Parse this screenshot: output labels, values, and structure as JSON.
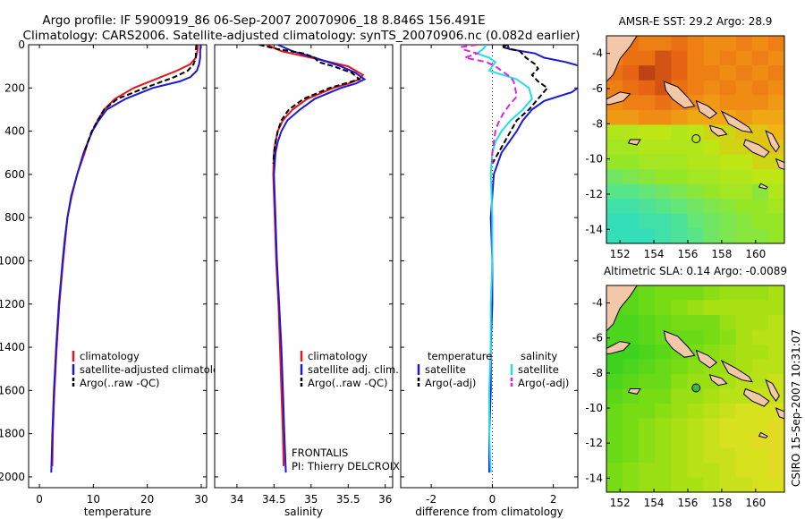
{
  "header": {
    "line1": "Argo profile: IF 5900919_86 06-Sep-2007 20070906_18 8.846S 156.491E",
    "line2": "Climatology: CARS2006. Satellite-adjusted climatology: synTS_20070906.nc (0.082d earlier)"
  },
  "side_label": "CSIRO 15-Sep-2007 10:31:07",
  "colors": {
    "climatology": "#e8141a",
    "satellite": "#1a1ad6",
    "argo": "#000000",
    "sat_salinity": "#22dde8",
    "argo_salinity": "#e020e0"
  },
  "chart_data": [
    {
      "id": "temperature",
      "type": "line",
      "xlabel": "temperature",
      "xlim": [
        -2,
        31
      ],
      "ylim": [
        0,
        2050
      ],
      "xticks": [
        0,
        10,
        20,
        30
      ],
      "yticks": [
        0,
        200,
        400,
        600,
        800,
        1000,
        1200,
        1400,
        1600,
        1800,
        2000
      ],
      "legend": [
        "climatology",
        "satellite-adjusted climatology",
        "Argo(..raw -QC)"
      ],
      "series": [
        {
          "name": "climatology",
          "color": "#e8141a",
          "dash": "",
          "depth": [
            0,
            30,
            60,
            90,
            120,
            150,
            200,
            250,
            300,
            350,
            400,
            450,
            500,
            600,
            700,
            800,
            900,
            1000,
            1200,
            1400,
            1600,
            1800,
            1950
          ],
          "values": [
            29.4,
            29.3,
            29.0,
            28.0,
            25.5,
            22.5,
            17.5,
            14.0,
            12.0,
            10.8,
            9.8,
            9.0,
            8.4,
            7.0,
            6.0,
            5.2,
            4.8,
            4.4,
            3.7,
            3.2,
            2.8,
            2.5,
            2.4
          ]
        },
        {
          "name": "satellite-adjusted climatology",
          "color": "#1a1ad6",
          "dash": "",
          "depth": [
            0,
            30,
            60,
            90,
            120,
            150,
            170,
            200,
            250,
            300,
            350,
            400,
            450,
            500,
            600,
            700,
            800,
            900,
            1000,
            1200,
            1400,
            1600,
            1800,
            1980
          ],
          "values": [
            29.9,
            29.8,
            29.8,
            29.6,
            29.2,
            28.0,
            26.0,
            21.0,
            16.0,
            12.5,
            11.0,
            9.8,
            9.0,
            8.2,
            7.0,
            5.9,
            5.2,
            4.7,
            4.3,
            3.6,
            3.1,
            2.7,
            2.4,
            2.2
          ]
        },
        {
          "name": "Argo(..raw -QC)",
          "color": "#000000",
          "dash": "6,3",
          "depth": [
            0,
            30,
            60,
            90,
            120,
            150,
            200,
            250,
            300,
            350,
            400,
            450,
            500
          ],
          "values": [
            29.1,
            29.0,
            29.0,
            28.6,
            27.5,
            25.0,
            19.5,
            14.5,
            12.0,
            10.8,
            9.7,
            9.0,
            8.3
          ]
        }
      ]
    },
    {
      "id": "salinity",
      "type": "line",
      "xlabel": "salinity",
      "xlim": [
        33.7,
        36.1
      ],
      "ylim": [
        0,
        2050
      ],
      "xticks": [
        34,
        34.5,
        35,
        35.5,
        36
      ],
      "yticks": [
        0,
        200,
        400,
        600,
        800,
        1000,
        1200,
        1400,
        1600,
        1800,
        2000
      ],
      "legend": [
        "climatology",
        "satellite adj. clim.",
        "Argo(..raw -QC)"
      ],
      "annotation": [
        "FRONTALIS",
        "PI: Thierry DELCROIX"
      ],
      "series": [
        {
          "name": "climatology",
          "color": "#e8141a",
          "dash": "",
          "depth": [
            0,
            30,
            60,
            100,
            140,
            160,
            180,
            200,
            250,
            300,
            350,
            400,
            450,
            500,
            600,
            800,
            1000,
            1200,
            1400,
            1600,
            1800,
            1950
          ],
          "values": [
            34.4,
            34.6,
            35.0,
            35.5,
            35.7,
            35.65,
            35.5,
            35.3,
            34.95,
            34.75,
            34.62,
            34.55,
            34.52,
            34.5,
            34.49,
            34.51,
            34.53,
            34.56,
            34.58,
            34.6,
            34.62,
            34.63
          ]
        },
        {
          "name": "satellite adj. clim.",
          "color": "#1a1ad6",
          "dash": "",
          "depth": [
            0,
            30,
            60,
            100,
            130,
            160,
            180,
            200,
            250,
            300,
            350,
            400,
            450,
            500,
            600,
            800,
            1000,
            1200,
            1400,
            1600,
            1800,
            1980
          ],
          "values": [
            34.55,
            34.75,
            35.05,
            35.4,
            35.6,
            35.72,
            35.6,
            35.4,
            35.05,
            34.85,
            34.68,
            34.6,
            34.55,
            34.52,
            34.5,
            34.52,
            34.54,
            34.57,
            34.6,
            34.62,
            34.64,
            34.66
          ]
        },
        {
          "name": "Argo(..raw -QC)",
          "color": "#000000",
          "dash": "6,3",
          "depth": [
            0,
            20,
            40,
            60,
            80,
            100,
            130,
            160,
            180,
            200,
            250,
            300,
            350,
            400,
            450,
            500,
            550
          ],
          "values": [
            34.3,
            34.55,
            34.9,
            35.05,
            35.1,
            35.3,
            35.55,
            35.65,
            35.45,
            35.25,
            34.9,
            34.7,
            34.6,
            34.55,
            34.52,
            34.5,
            34.49
          ]
        }
      ]
    },
    {
      "id": "difference",
      "type": "line",
      "xlabel": "difference from climatology",
      "xlim": [
        -3,
        2.8
      ],
      "ylim": [
        0,
        2050
      ],
      "xticks": [
        -2,
        0,
        2
      ],
      "yticks": [
        0,
        200,
        400,
        600,
        800,
        1000,
        1200,
        1400,
        1600,
        1800,
        2000
      ],
      "legend_titles": [
        "temperature",
        "salinity"
      ],
      "legend": [
        "satellite",
        "Argo(-adj)",
        "satellite",
        "Argo(-adj)"
      ],
      "zero_line": 0,
      "series": [
        {
          "name": "temperature satellite",
          "color": "#1a1ad6",
          "dash": "",
          "depth": [
            0,
            20,
            40,
            60,
            80,
            100,
            120,
            150,
            180,
            220,
            260,
            300,
            350,
            400,
            500,
            600,
            800,
            1000,
            1200,
            1400,
            1600,
            1800,
            1980
          ],
          "values": [
            0.5,
            0.55,
            1.4,
            1.7,
            2.4,
            2.9,
            3.1,
            3.3,
            3.0,
            2.6,
            1.7,
            1.3,
            1.0,
            0.8,
            0.3,
            0.05,
            -0.05,
            0.0,
            0.0,
            -0.05,
            -0.05,
            -0.1,
            -0.1
          ]
        },
        {
          "name": "temperature Argo(-adj)",
          "color": "#000000",
          "dash": "6,3",
          "depth": [
            0,
            10,
            30,
            60,
            90,
            110,
            140,
            170,
            200,
            250,
            300,
            350,
            400,
            450,
            500,
            550
          ],
          "values": [
            0.5,
            0.3,
            0.9,
            1.1,
            1.4,
            1.5,
            1.3,
            1.5,
            1.8,
            1.5,
            1.2,
            0.8,
            0.6,
            0.4,
            0.2,
            0.0
          ]
        },
        {
          "name": "salinity satellite",
          "color": "#22dde8",
          "dash": "",
          "depth": [
            0,
            20,
            40,
            60,
            80,
            100,
            120,
            160,
            200,
            250,
            300,
            350,
            400,
            450,
            500,
            600,
            800,
            1000,
            1200,
            1400,
            1600,
            1800,
            1980
          ],
          "values": [
            -0.2,
            -0.3,
            -0.5,
            -0.1,
            0.1,
            0.0,
            -0.1,
            0.8,
            1.2,
            1.3,
            1.0,
            0.6,
            0.3,
            0.1,
            0.0,
            -0.05,
            0.0,
            0.0,
            -0.05,
            -0.05,
            -0.1,
            -0.1,
            -0.05
          ]
        },
        {
          "name": "salinity Argo(-adj)",
          "color": "#e020e0",
          "dash": "7,4",
          "depth": [
            0,
            10,
            20,
            40,
            60,
            80,
            100,
            130,
            150,
            170,
            200,
            240,
            280,
            320,
            360,
            400,
            450,
            500,
            550
          ],
          "values": [
            -0.5,
            -1.0,
            -1.0,
            -0.5,
            -0.9,
            -0.2,
            0.1,
            0.4,
            0.6,
            0.7,
            0.75,
            0.8,
            0.55,
            0.35,
            0.2,
            0.1,
            0.05,
            0.0,
            0.0
          ]
        }
      ]
    },
    {
      "id": "sst_map",
      "type": "heatmap",
      "title": "AMSR-E SST: 29.2 Argo: 28.9",
      "xlim": [
        151.2,
        161.7
      ],
      "ylim": [
        -14.8,
        -3
      ],
      "xticks": [
        152,
        154,
        156,
        158,
        160
      ],
      "yticks": [
        -4,
        -6,
        -8,
        -10,
        -12,
        -14
      ],
      "marker": {
        "lon": 156.49,
        "lat": -8.85,
        "filled": false
      },
      "values": [
        [
          29.6,
          29.7,
          29.6,
          29.6,
          29.7,
          29.6,
          29.5,
          29.5,
          29.6,
          29.5,
          29.6
        ],
        [
          29.6,
          29.7,
          29.7,
          29.9,
          29.8,
          29.6,
          29.5,
          29.6,
          29.5,
          29.6,
          29.5
        ],
        [
          29.7,
          29.8,
          30.0,
          29.9,
          29.8,
          29.6,
          29.6,
          29.5,
          29.6,
          29.5,
          29.6
        ],
        [
          29.6,
          29.7,
          29.8,
          29.9,
          29.7,
          29.6,
          29.5,
          29.6,
          29.5,
          29.6,
          29.5
        ],
        [
          29.5,
          29.6,
          29.6,
          29.7,
          29.6,
          29.5,
          29.4,
          29.5,
          29.5,
          29.5,
          29.4
        ],
        [
          29.4,
          29.4,
          29.5,
          29.5,
          29.4,
          29.3,
          29.3,
          29.3,
          29.4,
          29.3,
          29.3
        ],
        [
          28.8,
          28.8,
          28.9,
          28.9,
          28.8,
          28.9,
          29.0,
          29.0,
          29.1,
          29.1,
          29.2
        ],
        [
          28.7,
          28.7,
          28.8,
          28.8,
          28.8,
          28.8,
          28.9,
          29.0,
          29.0,
          29.1,
          29.1
        ],
        [
          28.6,
          28.6,
          28.7,
          28.7,
          28.7,
          28.8,
          28.8,
          28.9,
          28.9,
          29.0,
          29.0
        ],
        [
          28.3,
          28.4,
          28.5,
          28.6,
          28.6,
          28.7,
          28.7,
          28.8,
          28.8,
          28.9,
          28.9
        ],
        [
          28.1,
          28.1,
          28.2,
          28.3,
          28.4,
          28.5,
          28.6,
          28.7,
          28.7,
          28.5,
          28.8
        ],
        [
          27.9,
          27.9,
          28.0,
          28.1,
          28.2,
          28.3,
          28.4,
          28.5,
          28.6,
          28.6,
          28.7
        ],
        [
          27.8,
          27.8,
          27.9,
          27.9,
          28.0,
          28.2,
          28.3,
          28.4,
          28.5,
          28.6,
          28.6
        ],
        [
          27.8,
          27.8,
          27.8,
          27.9,
          28.0,
          28.1,
          28.3,
          28.4,
          28.5,
          28.5,
          28.6
        ]
      ]
    },
    {
      "id": "sla_map",
      "type": "heatmap",
      "title": "Altimetric SLA: 0.14 Argo: -0.0089",
      "xlim": [
        151.2,
        161.7
      ],
      "ylim": [
        -14.8,
        -3
      ],
      "xticks": [
        152,
        154,
        156,
        158,
        160
      ],
      "yticks": [
        -4,
        -6,
        -8,
        -10,
        -12,
        -14
      ],
      "marker": {
        "lon": 156.49,
        "lat": -8.85,
        "filled": true
      },
      "values": [
        [
          0.1,
          0.1,
          0.11,
          0.12,
          0.12,
          0.12,
          0.13,
          0.14,
          0.14,
          0.14,
          0.15
        ],
        [
          0.09,
          0.1,
          0.11,
          0.12,
          0.13,
          0.14,
          0.15,
          0.15,
          0.15,
          0.15,
          0.15
        ],
        [
          0.09,
          0.09,
          0.1,
          0.11,
          0.12,
          0.12,
          0.12,
          0.14,
          0.15,
          0.15,
          0.16
        ],
        [
          0.09,
          0.09,
          0.1,
          0.11,
          0.11,
          0.11,
          0.12,
          0.13,
          0.15,
          0.16,
          0.16
        ],
        [
          0.08,
          0.08,
          0.09,
          0.1,
          0.11,
          0.12,
          0.13,
          0.14,
          0.15,
          0.15,
          0.16
        ],
        [
          0.08,
          0.09,
          0.1,
          0.11,
          0.12,
          0.13,
          0.14,
          0.14,
          0.15,
          0.16,
          0.16
        ],
        [
          0.09,
          0.1,
          0.11,
          0.11,
          0.13,
          0.14,
          0.14,
          0.15,
          0.16,
          0.16,
          0.17
        ],
        [
          0.1,
          0.11,
          0.12,
          0.12,
          0.14,
          0.14,
          0.15,
          0.16,
          0.16,
          0.17,
          0.17
        ],
        [
          0.11,
          0.12,
          0.12,
          0.13,
          0.14,
          0.15,
          0.16,
          0.17,
          0.18,
          0.18,
          0.18
        ],
        [
          0.11,
          0.12,
          0.13,
          0.14,
          0.15,
          0.16,
          0.17,
          0.18,
          0.18,
          0.18,
          0.19
        ],
        [
          0.11,
          0.12,
          0.13,
          0.14,
          0.15,
          0.16,
          0.17,
          0.18,
          0.18,
          0.19,
          0.19
        ],
        [
          0.11,
          0.12,
          0.13,
          0.14,
          0.15,
          0.16,
          0.17,
          0.17,
          0.18,
          0.18,
          0.19
        ],
        [
          0.12,
          0.13,
          0.14,
          0.14,
          0.15,
          0.16,
          0.16,
          0.17,
          0.18,
          0.18,
          0.19
        ],
        [
          0.12,
          0.13,
          0.14,
          0.14,
          0.15,
          0.15,
          0.16,
          0.17,
          0.17,
          0.18,
          0.18
        ]
      ]
    }
  ]
}
